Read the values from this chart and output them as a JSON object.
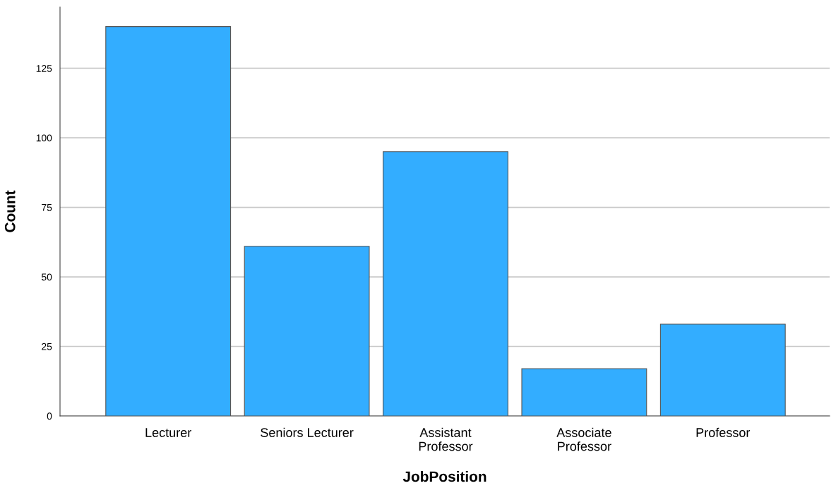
{
  "chart_data": {
    "type": "bar",
    "xlabel": "JobPosition",
    "ylabel": "Count",
    "categories": [
      "Lecturer",
      "Seniors Lecturer",
      "Assistant\nProfessor",
      "Associate\nProfessor",
      "Professor"
    ],
    "values": [
      140,
      61,
      95,
      17,
      33
    ],
    "color": "#33adff",
    "ylim": [
      0,
      147
    ],
    "yticks": [
      0,
      25,
      50,
      75,
      100,
      125
    ],
    "grid": "y"
  }
}
